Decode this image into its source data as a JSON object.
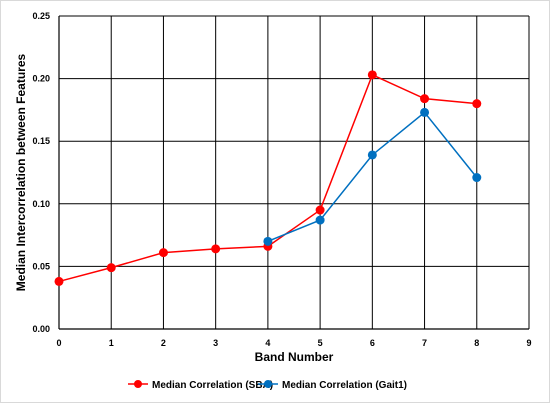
{
  "chart_data": {
    "type": "line",
    "xlabel": "Band Number",
    "ylabel": "Median Intercorrelation between Features",
    "xlim": [
      0,
      9
    ],
    "ylim": [
      0,
      0.25
    ],
    "x_ticks": [
      "0",
      "1",
      "2",
      "3",
      "4",
      "5",
      "6",
      "7",
      "8",
      "9"
    ],
    "y_ticks": [
      "0.00",
      "0.05",
      "0.10",
      "0.15",
      "0.20",
      "0.25"
    ],
    "grid": true,
    "legend_position": "bottom",
    "series": [
      {
        "name": "Median Correlation (SBA)",
        "color": "#ff0000",
        "x": [
          0,
          1,
          2,
          3,
          4,
          5,
          6,
          7,
          8
        ],
        "y": [
          0.038,
          0.049,
          0.061,
          0.064,
          0.066,
          0.095,
          0.203,
          0.184,
          0.18
        ]
      },
      {
        "name": "Median Correlation (Gait1)",
        "color": "#0070c0",
        "x": [
          4,
          5,
          6,
          7,
          8
        ],
        "y": [
          0.07,
          0.087,
          0.139,
          0.173,
          0.121
        ]
      }
    ]
  }
}
